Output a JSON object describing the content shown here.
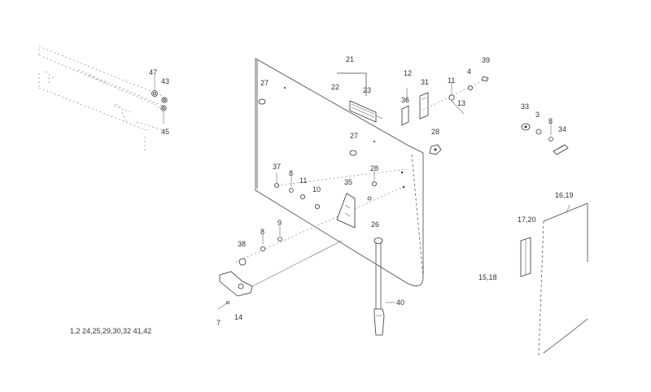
{
  "diagram": {
    "labels": {
      "l47": "47",
      "l43": "43",
      "l45": "45",
      "l27a": "27",
      "l21": "21",
      "l22": "22",
      "l23": "23",
      "l12": "12",
      "l31": "31",
      "l36": "36",
      "l4": "4",
      "l39": "39",
      "l11a": "11",
      "l13": "13",
      "l28a": "28",
      "l27b": "27",
      "l33": "33",
      "l3": "3",
      "l8a": "8",
      "l34": "34",
      "l37": "37",
      "l8b": "8",
      "l11b": "11",
      "l10": "10",
      "l35": "35",
      "l28b": "28",
      "l9": "9",
      "l26": "26",
      "l38": "38",
      "l8c": "8",
      "l7": "7",
      "l14": "14",
      "l40": "40",
      "l1619": "16,19",
      "l1720": "17,20",
      "l1518": "15,18",
      "lnote": "1,2 24,25,29,30,32 41,42"
    }
  }
}
